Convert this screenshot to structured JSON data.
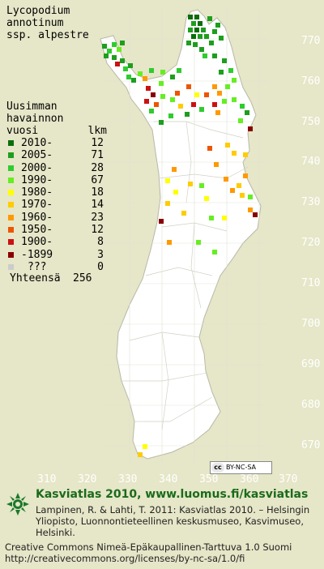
{
  "title": "Lycopodium\nannotinum\nssp. alpestre",
  "legend": {
    "heading": [
      "Uusimman",
      "havainnon"
    ],
    "col_year": "vuosi",
    "col_count": "lkm",
    "items": [
      {
        "label": "2010-",
        "count": "12",
        "color": "#0a6e0a"
      },
      {
        "label": "2005-",
        "count": "71",
        "color": "#1e9e1e"
      },
      {
        "label": "2000-",
        "count": "28",
        "color": "#2ecc2e"
      },
      {
        "label": "1990-",
        "count": "67",
        "color": "#66ee22"
      },
      {
        "label": "1980-",
        "count": "18",
        "color": "#ffff00"
      },
      {
        "label": "1970-",
        "count": "14",
        "color": "#ffcc00"
      },
      {
        "label": "1960-",
        "count": "23",
        "color": "#ff9900"
      },
      {
        "label": "1950-",
        "count": "12",
        "color": "#ee5500"
      },
      {
        "label": "1900-",
        "count": "8",
        "color": "#cc1111"
      },
      {
        "label": "-1899",
        "count": "3",
        "color": "#880000"
      },
      {
        "label": "???",
        "count": "0",
        "color": "#cccccc"
      }
    ],
    "total_label": "Yhteensä",
    "total_count": "256"
  },
  "axes": {
    "y_ticks": [
      "770",
      "760",
      "750",
      "740",
      "730",
      "720",
      "710",
      "700",
      "690",
      "680",
      "670"
    ],
    "x_ticks": [
      "310",
      "320",
      "330",
      "340",
      "350",
      "360",
      "370"
    ]
  },
  "license_badge": {
    "cc": "cc",
    "text": "BY-NC-SA"
  },
  "footer": {
    "line1": "Kasviatlas 2010, www.luomus.fi/kasviatlas",
    "line2": "Lampinen, R. & Lahti, T. 2011: Kasviatlas 2010. – Helsingin Yliopisto, Luonnontieteellinen keskusmuseo, Kasvimuseo, Helsinki.",
    "line3": "Creative Commons Nimeä-Epäkaupallinen-Tarttuva 1.0 Suomi",
    "line4": "http://creativecommons.org/licenses/by-nc-sa/1.0/fi"
  },
  "colors": {
    "background": "#e6e6c8",
    "land": "#ffffff",
    "grid": "#d8d8c8"
  }
}
